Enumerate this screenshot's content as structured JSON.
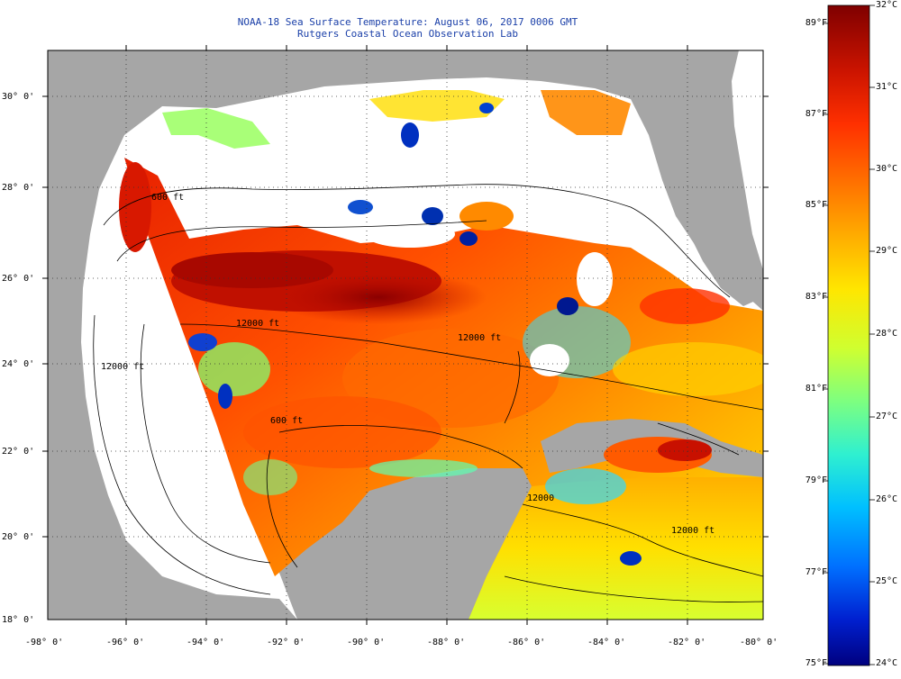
{
  "title_line1": "NOAA-18 Sea Surface Temperature:  August 06, 2017 0006 GMT",
  "title_line2": "Rutgers Coastal Ocean Observation Lab",
  "colors": {
    "land": "#a6a6a6",
    "no_data": "#ffffff",
    "title": "#1a3fa8",
    "scale": [
      "#7f0000",
      "#cc1400",
      "#ff3000",
      "#ff7a00",
      "#ffb400",
      "#ffe600",
      "#cfff30",
      "#7dff80",
      "#2ff0d0",
      "#00c0ff",
      "#0070ff",
      "#0020d0",
      "#00007f"
    ]
  },
  "map": {
    "lat_labels": [
      "30° 0'",
      "28° 0'",
      "26° 0'",
      "24° 0'",
      "22° 0'",
      "20° 0'",
      "18° 0'"
    ],
    "lon_labels": [
      "-98° 0'",
      "-96° 0'",
      "-94° 0'",
      "-92° 0'",
      "-90° 0'",
      "-88° 0'",
      "-86° 0'",
      "-84° 0'",
      "-82° 0'",
      "-80° 0'"
    ],
    "contour_labels": [
      "600 ft",
      "12000 ft",
      "12000 ft",
      "600 ft",
      "12000",
      "12000 ft",
      "12000 ft"
    ]
  },
  "colorbar": {
    "fahrenheit": [
      "89°F",
      "87°F",
      "85°F",
      "83°F",
      "81°F",
      "79°F",
      "77°F",
      "75°F"
    ],
    "celsius": [
      "32°C",
      "31°C",
      "30°C",
      "29°C",
      "28°C",
      "27°C",
      "26°C",
      "25°C",
      "24°C"
    ]
  }
}
